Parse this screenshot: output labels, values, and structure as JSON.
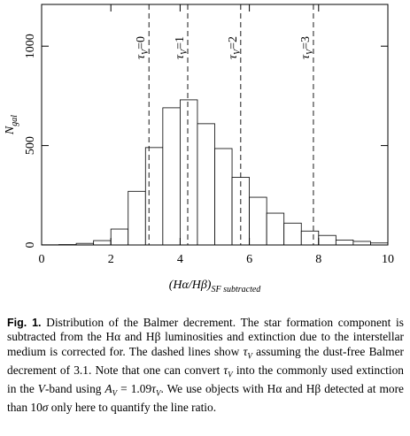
{
  "chart_data": {
    "type": "histogram",
    "bins": [
      0,
      0.5,
      1,
      1.5,
      2,
      2.5,
      3,
      3.5,
      4,
      4.5,
      5,
      5.5,
      6,
      6.5,
      7,
      7.5,
      8,
      8.5,
      9,
      9.5,
      10
    ],
    "values": [
      1,
      2,
      8,
      22,
      80,
      270,
      490,
      690,
      730,
      610,
      485,
      340,
      240,
      160,
      110,
      70,
      48,
      25,
      18,
      10
    ],
    "color": "#ffffff",
    "xlim": [
      0,
      10
    ],
    "ylim": [
      0,
      1210
    ],
    "xticks": [
      0,
      2,
      4,
      6,
      8,
      10
    ],
    "yticks": [
      0,
      500,
      1000
    ],
    "xlabel": {
      "main": "(Hα/Hβ)",
      "sub": "SF subtracted"
    },
    "ylabel": {
      "main": "N",
      "sub": "gal"
    },
    "vlines": [
      {
        "x": 3.1,
        "symbol": "τ",
        "sub": "V",
        "text": "=0"
      },
      {
        "x": 4.22,
        "symbol": "τ",
        "sub": "V",
        "text": "=1"
      },
      {
        "x": 5.75,
        "symbol": "τ",
        "sub": "V",
        "text": "=2"
      },
      {
        "x": 7.85,
        "symbol": "τ",
        "sub": "V",
        "text": "=3"
      }
    ]
  },
  "caption": {
    "label": "Fig. 1.",
    "segments": [
      {
        "text": " Distribution of the Balmer decrement. The star formation component is subtracted from the Hα and Hβ luminosities and extinction due to the interstellar medium is corrected for. The dashed lines show "
      },
      {
        "math": "τ",
        "sub": "V"
      },
      {
        "text": " assuming the dust-free Balmer decrement of 3.1. Note that one can convert "
      },
      {
        "math": "τ",
        "sub": "V"
      },
      {
        "text": " into the commonly used extinction in the "
      },
      {
        "math": "V"
      },
      {
        "text": "-band using "
      },
      {
        "math": "A",
        "sub": "V"
      },
      {
        "text": " = 1.09"
      },
      {
        "math": "τ",
        "sub": "V"
      },
      {
        "text": ". We use objects with Hα and Hβ detected at more than 10"
      },
      {
        "math": "σ"
      },
      {
        "text": " only here to quantify the line ratio."
      }
    ]
  }
}
